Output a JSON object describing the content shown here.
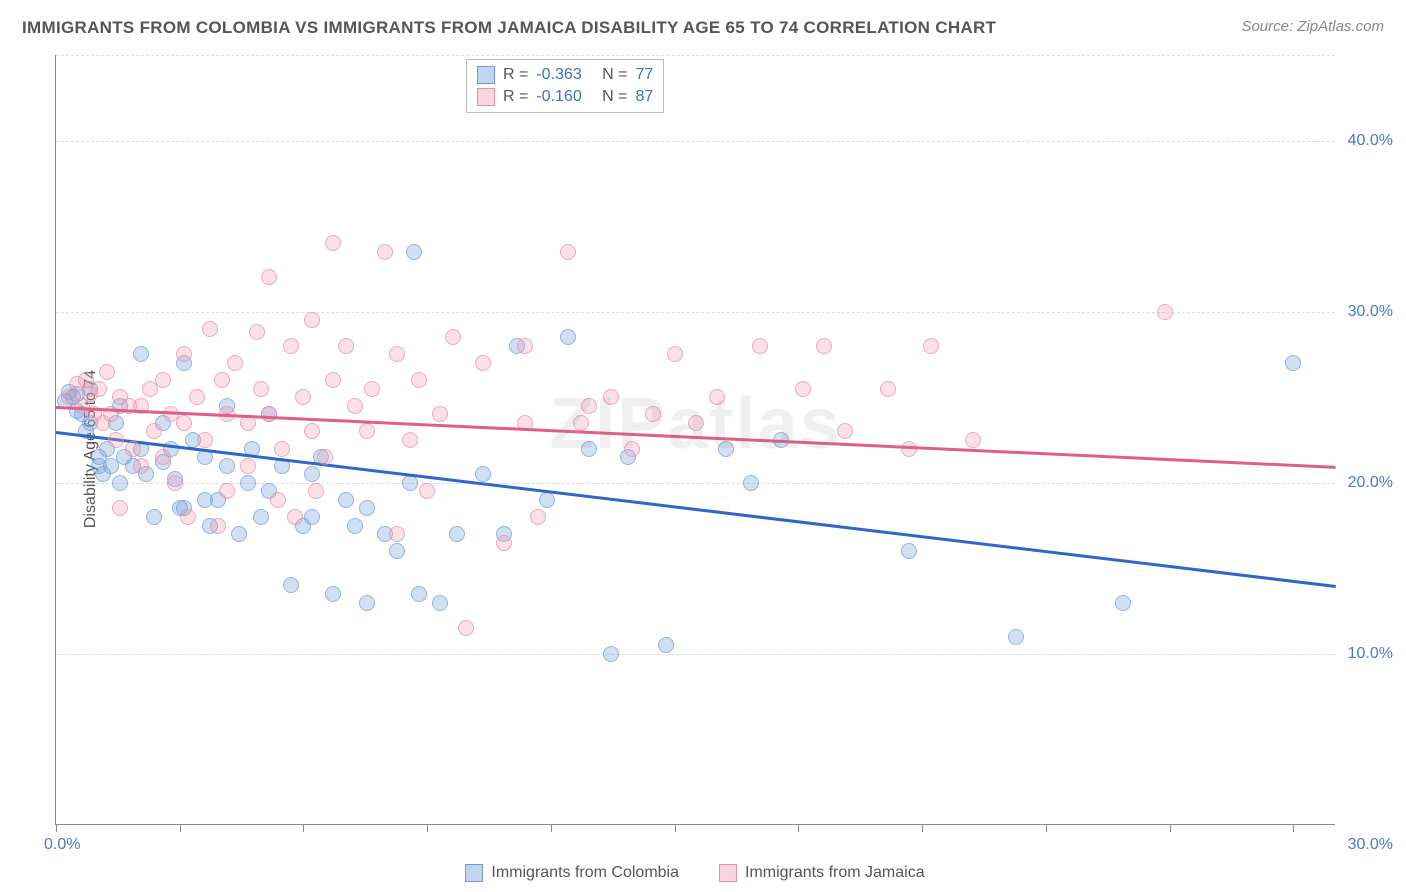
{
  "title": "IMMIGRANTS FROM COLOMBIA VS IMMIGRANTS FROM JAMAICA DISABILITY AGE 65 TO 74 CORRELATION CHART",
  "source": "Source: ZipAtlas.com",
  "watermark": "ZIPatlas",
  "ylabel": "Disability Age 65 to 74",
  "chart": {
    "type": "scatter",
    "xlim": [
      0,
      30
    ],
    "ylim": [
      0,
      45
    ],
    "x_tick_positions": [
      0,
      2.9,
      5.8,
      8.7,
      11.6,
      14.5,
      17.4,
      20.3,
      23.2,
      26.1,
      29.0
    ],
    "y_gridlines": [
      10,
      20,
      30,
      40,
      45
    ],
    "x_labels": {
      "min": "0.0%",
      "max": "30.0%"
    },
    "y_labels": [
      {
        "v": 10,
        "t": "10.0%"
      },
      {
        "v": 20,
        "t": "20.0%"
      },
      {
        "v": 30,
        "t": "30.0%"
      },
      {
        "v": 40,
        "t": "40.0%"
      }
    ],
    "background_color": "#ffffff",
    "grid_color": "#dddddd",
    "marker_size": 16,
    "series": [
      {
        "name": "Immigrants from Colombia",
        "color_fill": "rgba(120,160,220,0.45)",
        "color_stroke": "#6f9ad6",
        "trend_color": "#2e66c9",
        "R": "-0.363",
        "N": "77",
        "trend": {
          "x1": 0,
          "y1": 23.0,
          "x2": 30,
          "y2": 14.0
        },
        "points": [
          [
            0.2,
            24.8
          ],
          [
            0.3,
            25.3
          ],
          [
            0.4,
            25.0
          ],
          [
            0.5,
            24.2
          ],
          [
            0.5,
            25.2
          ],
          [
            0.6,
            24.0
          ],
          [
            0.7,
            23.0
          ],
          [
            0.8,
            25.5
          ],
          [
            0.8,
            23.5
          ],
          [
            1.0,
            21.0
          ],
          [
            1.0,
            21.5
          ],
          [
            1.1,
            20.5
          ],
          [
            1.2,
            22.0
          ],
          [
            1.3,
            21.0
          ],
          [
            1.4,
            23.5
          ],
          [
            1.5,
            20.0
          ],
          [
            1.5,
            24.5
          ],
          [
            1.6,
            21.5
          ],
          [
            1.8,
            21.0
          ],
          [
            2.0,
            27.5
          ],
          [
            2.0,
            22.0
          ],
          [
            2.1,
            20.5
          ],
          [
            2.3,
            18.0
          ],
          [
            2.5,
            21.2
          ],
          [
            2.5,
            23.5
          ],
          [
            2.7,
            22.0
          ],
          [
            2.8,
            20.2
          ],
          [
            3.0,
            27.0
          ],
          [
            3.0,
            18.5
          ],
          [
            3.2,
            22.5
          ],
          [
            3.5,
            19.0
          ],
          [
            3.5,
            21.5
          ],
          [
            3.6,
            17.5
          ],
          [
            3.8,
            19.0
          ],
          [
            4.0,
            21.0
          ],
          [
            4.0,
            24.5
          ],
          [
            4.3,
            17.0
          ],
          [
            4.5,
            20.0
          ],
          [
            4.8,
            18.0
          ],
          [
            5.0,
            19.5
          ],
          [
            5.0,
            24.0
          ],
          [
            5.3,
            21.0
          ],
          [
            5.5,
            14.0
          ],
          [
            5.8,
            17.5
          ],
          [
            6.0,
            20.5
          ],
          [
            6.0,
            18.0
          ],
          [
            6.5,
            13.5
          ],
          [
            6.8,
            19.0
          ],
          [
            7.0,
            17.5
          ],
          [
            7.3,
            13.0
          ],
          [
            7.3,
            18.5
          ],
          [
            7.7,
            17.0
          ],
          [
            8.0,
            16.0
          ],
          [
            8.3,
            20.0
          ],
          [
            8.4,
            33.5
          ],
          [
            8.5,
            13.5
          ],
          [
            9.0,
            13.0
          ],
          [
            9.4,
            17.0
          ],
          [
            10.0,
            20.5
          ],
          [
            10.5,
            17.0
          ],
          [
            10.8,
            28.0
          ],
          [
            11.5,
            19.0
          ],
          [
            12.0,
            28.5
          ],
          [
            12.5,
            22.0
          ],
          [
            13.0,
            10.0
          ],
          [
            13.4,
            21.5
          ],
          [
            14.3,
            10.5
          ],
          [
            15.7,
            22.0
          ],
          [
            16.3,
            20.0
          ],
          [
            17.0,
            22.5
          ],
          [
            20.0,
            16.0
          ],
          [
            22.5,
            11.0
          ],
          [
            25.0,
            13.0
          ],
          [
            29.0,
            27.0
          ],
          [
            6.2,
            21.5
          ],
          [
            4.6,
            22.0
          ],
          [
            2.9,
            18.5
          ]
        ]
      },
      {
        "name": "Immigrants from Jamaica",
        "color_fill": "rgba(240,150,170,0.40)",
        "color_stroke": "#e590a7",
        "trend_color": "#e15f87",
        "R": "-0.160",
        "N": "87",
        "trend": {
          "x1": 0,
          "y1": 24.5,
          "x2": 30,
          "y2": 21.0
        },
        "points": [
          [
            0.3,
            25.0
          ],
          [
            0.5,
            25.8
          ],
          [
            0.6,
            24.5
          ],
          [
            0.7,
            26.0
          ],
          [
            0.8,
            25.2
          ],
          [
            0.9,
            24.0
          ],
          [
            1.0,
            25.5
          ],
          [
            1.1,
            23.5
          ],
          [
            1.2,
            26.5
          ],
          [
            1.3,
            24.0
          ],
          [
            1.4,
            22.5
          ],
          [
            1.5,
            25.0
          ],
          [
            1.5,
            18.5
          ],
          [
            1.7,
            24.5
          ],
          [
            1.8,
            22.0
          ],
          [
            2.0,
            24.5
          ],
          [
            2.0,
            21.0
          ],
          [
            2.2,
            25.5
          ],
          [
            2.3,
            23.0
          ],
          [
            2.5,
            26.0
          ],
          [
            2.5,
            21.5
          ],
          [
            2.7,
            24.0
          ],
          [
            2.8,
            20.0
          ],
          [
            3.0,
            27.5
          ],
          [
            3.0,
            23.5
          ],
          [
            3.1,
            18.0
          ],
          [
            3.3,
            25.0
          ],
          [
            3.5,
            22.5
          ],
          [
            3.6,
            29.0
          ],
          [
            3.8,
            17.5
          ],
          [
            4.0,
            24.0
          ],
          [
            4.0,
            19.5
          ],
          [
            4.2,
            27.0
          ],
          [
            4.5,
            23.5
          ],
          [
            4.5,
            21.0
          ],
          [
            4.8,
            25.5
          ],
          [
            5.0,
            32.0
          ],
          [
            5.0,
            24.0
          ],
          [
            5.3,
            22.0
          ],
          [
            5.5,
            28.0
          ],
          [
            5.6,
            18.0
          ],
          [
            5.8,
            25.0
          ],
          [
            6.0,
            29.5
          ],
          [
            6.0,
            23.0
          ],
          [
            6.3,
            21.5
          ],
          [
            6.5,
            34.0
          ],
          [
            6.5,
            26.0
          ],
          [
            6.8,
            28.0
          ],
          [
            7.0,
            24.5
          ],
          [
            7.3,
            23.0
          ],
          [
            7.7,
            33.5
          ],
          [
            8.0,
            17.0
          ],
          [
            8.0,
            27.5
          ],
          [
            8.3,
            22.5
          ],
          [
            8.5,
            26.0
          ],
          [
            9.0,
            24.0
          ],
          [
            9.3,
            28.5
          ],
          [
            9.6,
            11.5
          ],
          [
            10.0,
            27.0
          ],
          [
            10.5,
            16.5
          ],
          [
            11.0,
            23.5
          ],
          [
            11.0,
            28.0
          ],
          [
            11.3,
            18.0
          ],
          [
            12.0,
            33.5
          ],
          [
            12.3,
            23.5
          ],
          [
            12.5,
            24.5
          ],
          [
            13.0,
            25.0
          ],
          [
            13.5,
            22.0
          ],
          [
            14.0,
            24.0
          ],
          [
            14.5,
            27.5
          ],
          [
            15.0,
            23.5
          ],
          [
            15.5,
            25.0
          ],
          [
            16.5,
            28.0
          ],
          [
            17.5,
            25.5
          ],
          [
            18.0,
            28.0
          ],
          [
            18.5,
            23.0
          ],
          [
            19.5,
            25.5
          ],
          [
            20.0,
            22.0
          ],
          [
            20.5,
            28.0
          ],
          [
            21.5,
            22.5
          ],
          [
            26.0,
            30.0
          ],
          [
            4.7,
            28.8
          ],
          [
            3.9,
            26.0
          ],
          [
            5.2,
            19.0
          ],
          [
            6.1,
            19.5
          ],
          [
            7.4,
            25.5
          ],
          [
            8.7,
            19.5
          ]
        ]
      }
    ]
  },
  "legend_top_label_R": "R =",
  "legend_top_label_N": "N ="
}
